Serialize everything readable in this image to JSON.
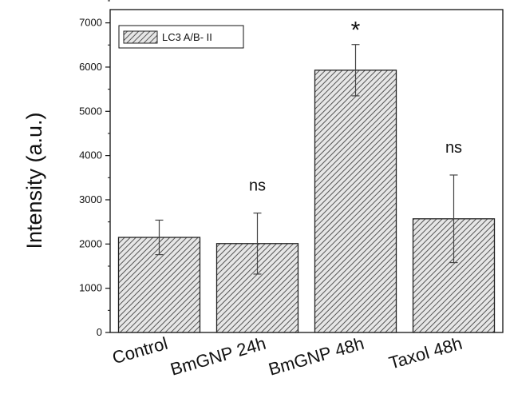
{
  "chart_data": {
    "type": "bar",
    "categories": [
      "Control",
      "BmGNP 24h",
      "BmGNP 48h",
      "Taxol 48h"
    ],
    "series": [
      {
        "name": "LC3 A/B- II",
        "values": [
          2150,
          2010,
          5930,
          2570
        ],
        "errors": [
          390,
          690,
          580,
          990
        ],
        "annotations": [
          "",
          "ns",
          "*",
          "ns"
        ]
      }
    ],
    "ylabel": "Intensity (a.u.)",
    "xlabel": "",
    "ylim": [
      0,
      7300
    ],
    "yticks": [
      0,
      1000,
      2000,
      3000,
      4000,
      5000,
      6000,
      7000
    ],
    "legend_position": "top-left",
    "grid": false,
    "bar_fill": "hatched",
    "colors": {
      "bar_stroke": "#222222",
      "hatch": "#555555",
      "axis": "#111111",
      "error": "#444444"
    }
  }
}
